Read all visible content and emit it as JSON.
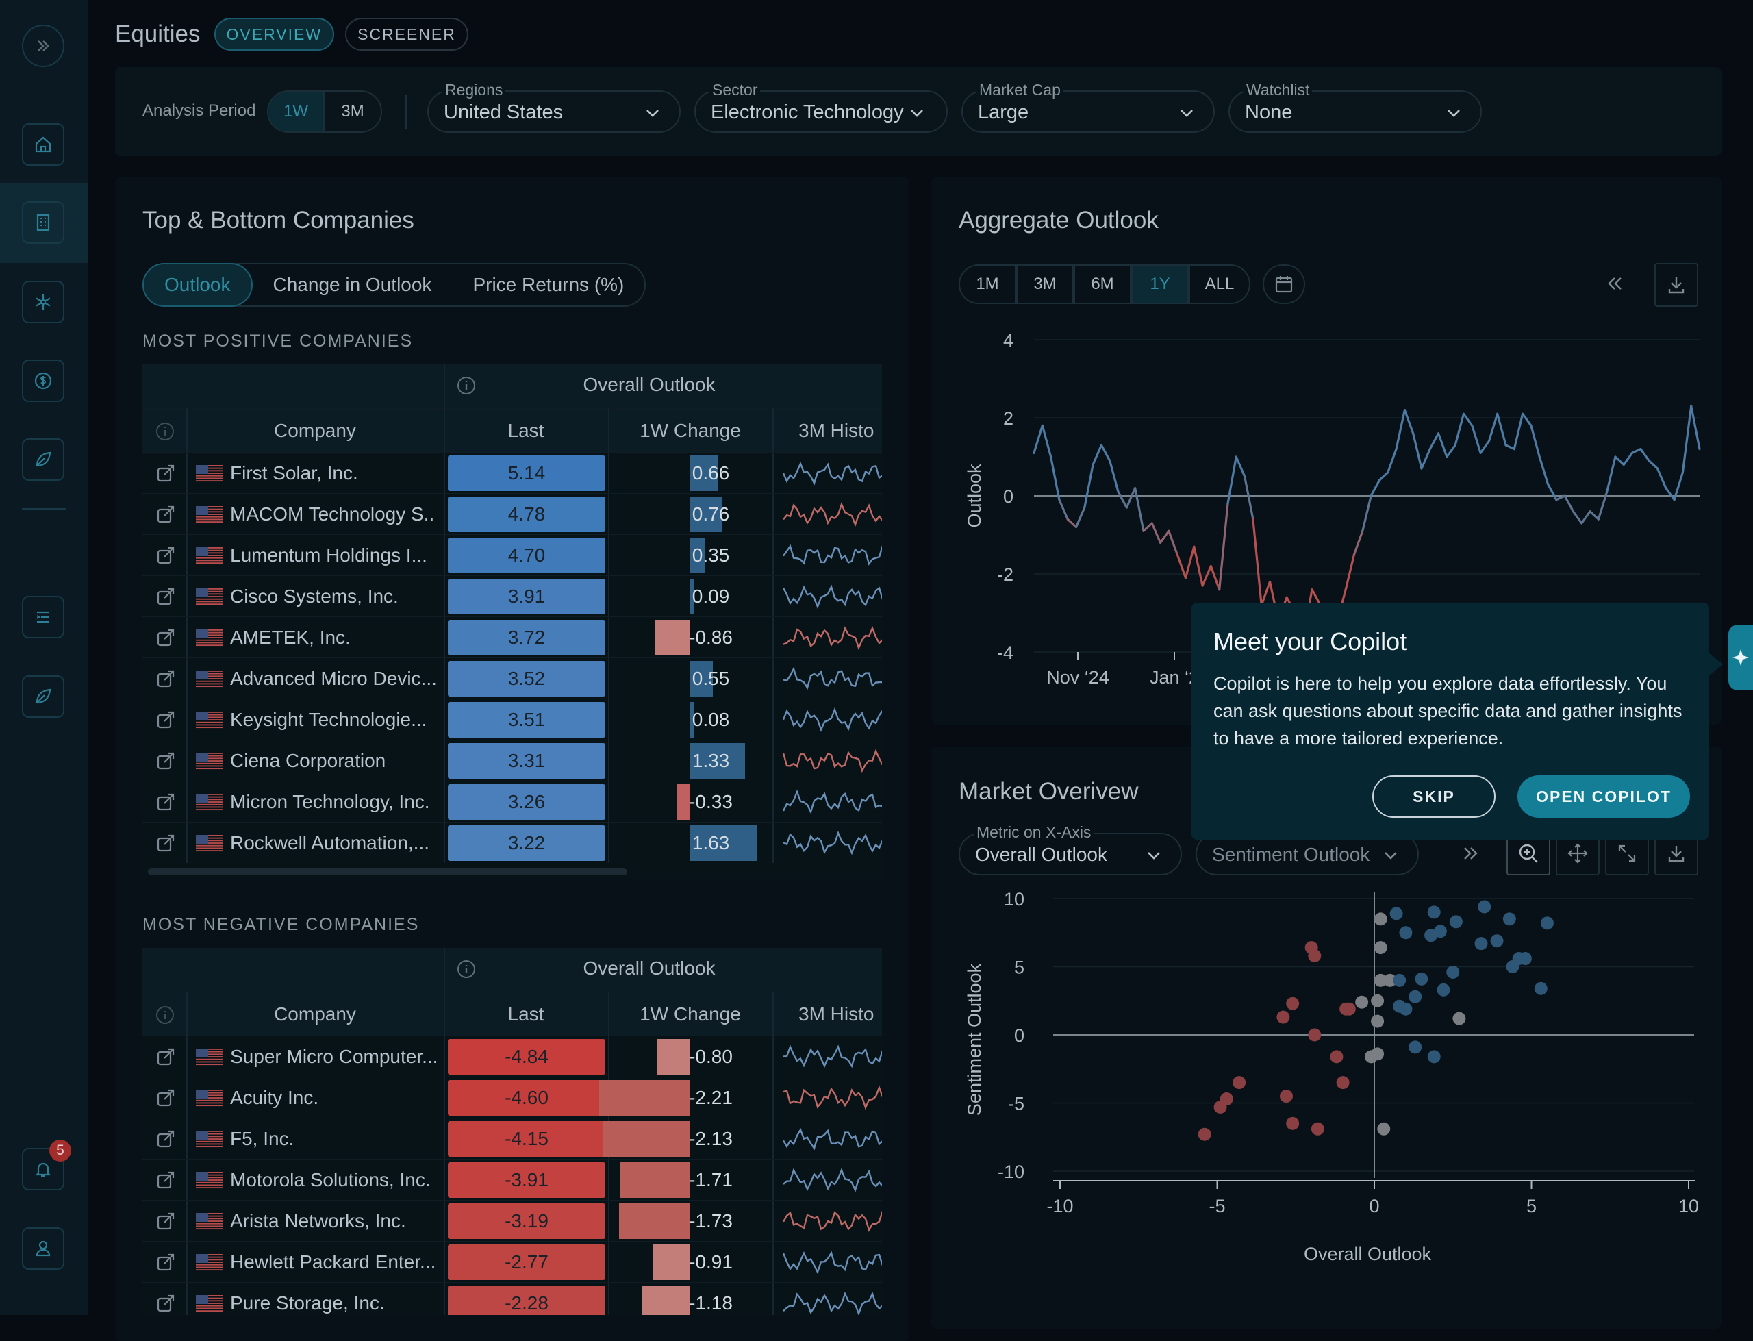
{
  "header": {
    "title": "Equities",
    "tabs": [
      "OVERVIEW",
      "SCREENER"
    ]
  },
  "filters": {
    "analysis_period_label": "Analysis Period",
    "periods": [
      "1W",
      "3M"
    ],
    "regions": {
      "label": "Regions",
      "value": "United States"
    },
    "sector": {
      "label": "Sector",
      "value": "Electronic Technology"
    },
    "market_cap": {
      "label": "Market Cap",
      "value": "Large"
    },
    "watchlist": {
      "label": "Watchlist",
      "value": "None"
    }
  },
  "sidebar": {
    "notification_count": "5",
    "icons": [
      "expand-icon",
      "home-icon",
      "building-icon",
      "snowflake-icon",
      "dollar-icon",
      "leaf-icon",
      "list-icon",
      "leaf-icon",
      "bell-icon",
      "user-icon"
    ]
  },
  "companies_panel": {
    "title": "Top & Bottom Companies",
    "tabs": [
      "Outlook",
      "Change in Outlook",
      "Price Returns (%)"
    ],
    "positive_title": "MOST POSITIVE COMPANIES",
    "negative_title": "MOST NEGATIVE COMPANIES",
    "group_header": "Overall Outlook",
    "columns": [
      "Company",
      "Last",
      "1W Change",
      "3M Histo"
    ],
    "positive": [
      {
        "name": "First Solar, Inc.",
        "last": "5.14",
        "change": "0.66",
        "chg": 0.66
      },
      {
        "name": "MACOM Technology S...",
        "last": "4.78",
        "change": "0.76",
        "chg": 0.76
      },
      {
        "name": "Lumentum Holdings I...",
        "last": "4.70",
        "change": "0.35",
        "chg": 0.35
      },
      {
        "name": "Cisco Systems, Inc.",
        "last": "3.91",
        "change": "0.09",
        "chg": 0.09
      },
      {
        "name": "AMETEK, Inc.",
        "last": "3.72",
        "change": "-0.86",
        "chg": -0.86
      },
      {
        "name": "Advanced Micro Devic...",
        "last": "3.52",
        "change": "0.55",
        "chg": 0.55
      },
      {
        "name": "Keysight Technologie...",
        "last": "3.51",
        "change": "0.08",
        "chg": 0.08
      },
      {
        "name": "Ciena Corporation",
        "last": "3.31",
        "change": "1.33",
        "chg": 1.33
      },
      {
        "name": "Micron Technology, Inc.",
        "last": "3.26",
        "change": "-0.33",
        "chg": -0.33
      },
      {
        "name": "Rockwell Automation,...",
        "last": "3.22",
        "change": "1.63",
        "chg": 1.63
      }
    ],
    "negative": [
      {
        "name": "Super Micro Computer...",
        "last": "-4.84",
        "change": "-0.80",
        "chg": -0.8
      },
      {
        "name": "Acuity Inc.",
        "last": "-4.60",
        "change": "-2.21",
        "chg": -2.21
      },
      {
        "name": "F5, Inc.",
        "last": "-4.15",
        "change": "-2.13",
        "chg": -2.13
      },
      {
        "name": "Motorola Solutions, Inc.",
        "last": "-3.91",
        "change": "-1.71",
        "chg": -1.71
      },
      {
        "name": "Arista Networks, Inc.",
        "last": "-3.19",
        "change": "-1.73",
        "chg": -1.73
      },
      {
        "name": "Hewlett Packard Enter...",
        "last": "-2.77",
        "change": "-0.91",
        "chg": -0.91
      },
      {
        "name": "Pure Storage, Inc.",
        "last": "-2.28",
        "change": "-1.18",
        "chg": -1.18
      }
    ]
  },
  "aggregate": {
    "title": "Aggregate Outlook",
    "ranges": [
      "1M",
      "3M",
      "6M",
      "1Y",
      "ALL"
    ],
    "active_range": "1Y"
  },
  "market_overview": {
    "title": "Market Overivew",
    "x_metric_label": "Metric on X-Axis",
    "x_metric_value": "Overall Outlook",
    "y_metric_value": "Sentiment Outlook"
  },
  "popup": {
    "title": "Meet your Copilot",
    "text": "Copilot is here to help you explore data effortlessly. You can ask questions about specific data and gather insights to have a more tailored experience.",
    "skip": "SKIP",
    "open": "OPEN COPILOT"
  },
  "chart_data": [
    {
      "type": "line",
      "ylabel": "Outlook",
      "xlabel": "",
      "ylim": [
        -4,
        4
      ],
      "yticks": [
        4,
        2,
        0,
        -2,
        -4
      ],
      "xticks": [
        "Nov '24",
        "Jan '2"
      ],
      "series": [
        {
          "values": [
            1.1,
            1.8,
            1.0,
            -0.1,
            -0.6,
            -0.8,
            -0.3,
            0.8,
            1.3,
            0.9,
            0.1,
            -0.3,
            0.2,
            -0.9,
            -0.7,
            -1.2,
            -0.9,
            -1.5,
            -2.1,
            -1.3,
            -2.3,
            -1.8,
            -2.4,
            -0.2,
            1.0,
            0.5,
            -0.6,
            -2.8,
            -2.2,
            -3.2,
            -2.6,
            -3.0,
            -3.6,
            -2.4,
            -2.8,
            -3.3,
            -3.2,
            -2.4,
            -1.5,
            -0.9,
            0.0,
            0.4,
            0.6,
            1.2,
            2.2,
            1.6,
            0.7,
            1.2,
            1.6,
            1.0,
            1.3,
            2.1,
            1.8,
            1.1,
            1.4,
            2.1,
            1.3,
            1.2,
            2.1,
            1.8,
            1.0,
            0.3,
            -0.1,
            0.0,
            -0.4,
            -0.7,
            -0.4,
            -0.6,
            0.1,
            1.0,
            0.8,
            1.1,
            1.2,
            0.9,
            0.7,
            0.2,
            -0.1,
            0.6,
            2.3,
            1.2
          ]
        }
      ]
    },
    {
      "type": "scatter",
      "xlabel": "Overall Outlook",
      "ylabel": "Sentiment Outlook",
      "xlim": [
        -10,
        10
      ],
      "ylim": [
        -10,
        10
      ],
      "xticks": [
        -10,
        -5,
        0,
        5,
        10
      ],
      "yticks": [
        10,
        5,
        0,
        -5,
        -10
      ],
      "points": [
        [
          0.2,
          8.5
        ],
        [
          0.7,
          8.9
        ],
        [
          1.9,
          9.0
        ],
        [
          3.5,
          9.4
        ],
        [
          4.3,
          8.5
        ],
        [
          5.5,
          8.2
        ],
        [
          1.0,
          7.5
        ],
        [
          1.8,
          7.3
        ],
        [
          2.6,
          8.3
        ],
        [
          2.1,
          7.6
        ],
        [
          3.4,
          6.7
        ],
        [
          3.9,
          6.9
        ],
        [
          4.6,
          5.6
        ],
        [
          4.8,
          5.6
        ],
        [
          4.4,
          5.0
        ],
        [
          0.2,
          6.4
        ],
        [
          2.5,
          4.6
        ],
        [
          1.5,
          4.1
        ],
        [
          0.2,
          4.0
        ],
        [
          0.5,
          4.0
        ],
        [
          0.8,
          4.0
        ],
        [
          2.2,
          3.3
        ],
        [
          1.3,
          2.8
        ],
        [
          0.8,
          2.1
        ],
        [
          -0.4,
          2.4
        ],
        [
          -0.8,
          1.9
        ],
        [
          -0.9,
          1.9
        ],
        [
          1.0,
          1.9
        ],
        [
          0.1,
          2.5
        ],
        [
          5.3,
          3.4
        ],
        [
          2.7,
          1.2
        ],
        [
          0.1,
          1.0
        ],
        [
          -2.0,
          6.4
        ],
        [
          -1.9,
          5.8
        ],
        [
          -2.6,
          2.3
        ],
        [
          -2.9,
          1.3
        ],
        [
          -1.9,
          0.0
        ],
        [
          1.3,
          -0.9
        ],
        [
          1.9,
          -1.6
        ],
        [
          0.1,
          -1.4
        ],
        [
          -0.1,
          -1.6
        ],
        [
          -1.2,
          -1.6
        ],
        [
          -1.0,
          -3.5
        ],
        [
          -4.3,
          -3.5
        ],
        [
          -2.8,
          -4.5
        ],
        [
          -4.7,
          -4.7
        ],
        [
          -4.9,
          -5.3
        ],
        [
          -2.6,
          -6.5
        ],
        [
          -1.8,
          -6.9
        ],
        [
          0.3,
          -6.9
        ],
        [
          -5.4,
          -7.3
        ]
      ]
    }
  ]
}
